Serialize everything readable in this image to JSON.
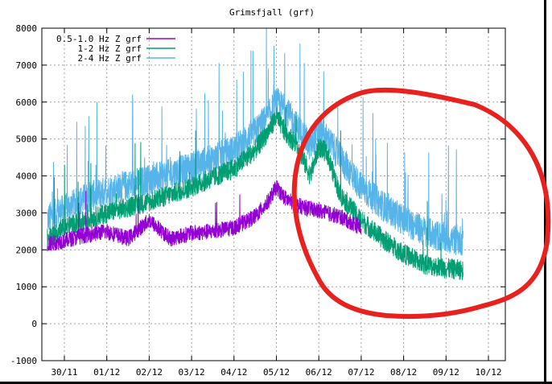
{
  "chart_data": {
    "type": "line",
    "title": "Grimsfjall (grf)",
    "xlabel": "",
    "ylabel": "",
    "ylim": [
      -1000,
      8000
    ],
    "yticks": [
      "-1000",
      "0",
      "1000",
      "2000",
      "3000",
      "4000",
      "5000",
      "6000",
      "7000",
      "8000"
    ],
    "xticks": [
      "30/11",
      "01/12",
      "02/12",
      "03/12",
      "04/12",
      "05/12",
      "06/12",
      "07/12",
      "08/12",
      "09/12",
      "10/12"
    ],
    "xlim": [
      0,
      10.6
    ],
    "grid": true,
    "legend_position": "top-left",
    "series": [
      {
        "name": "0.5-1.0 Hz Z grf",
        "color": "#9400d3",
        "x": [
          -0.4,
          0.0,
          0.5,
          1.0,
          1.5,
          2.0,
          2.5,
          3.0,
          3.5,
          4.0,
          4.5,
          4.8,
          5.0,
          5.2,
          5.5,
          6.0,
          6.5,
          7.0
        ],
        "values": [
          2150,
          2250,
          2400,
          2500,
          2300,
          2800,
          2300,
          2450,
          2500,
          2600,
          2900,
          3300,
          3700,
          3400,
          3200,
          3050,
          2900,
          2600
        ]
      },
      {
        "name": "1-2 Hz Z grf",
        "color": "#009e73",
        "x": [
          -0.4,
          0.0,
          0.5,
          1.0,
          1.5,
          2.0,
          2.5,
          3.0,
          3.5,
          4.0,
          4.5,
          4.8,
          5.0,
          5.2,
          5.5,
          5.8,
          6.0,
          6.2,
          6.5,
          7.0,
          7.5,
          8.0,
          8.5,
          9.0,
          9.4
        ],
        "values": [
          2300,
          2600,
          2800,
          3000,
          3150,
          3300,
          3500,
          3700,
          3950,
          4200,
          4700,
          5200,
          5600,
          5200,
          4800,
          4000,
          4800,
          4600,
          3500,
          2800,
          2300,
          1900,
          1600,
          1500,
          1450
        ]
      },
      {
        "name": "2-4 Hz Z grf",
        "color": "#56b4e9",
        "x": [
          -0.4,
          0.0,
          0.5,
          1.0,
          1.5,
          2.0,
          2.5,
          3.0,
          3.5,
          4.0,
          4.5,
          4.8,
          5.0,
          5.2,
          5.5,
          5.8,
          6.0,
          6.2,
          6.5,
          7.0,
          7.5,
          8.0,
          8.5,
          9.0,
          9.4
        ],
        "values": [
          2850,
          3100,
          3400,
          3600,
          3750,
          3900,
          4050,
          4250,
          4450,
          4700,
          5200,
          5600,
          6000,
          5800,
          5300,
          4800,
          5200,
          5000,
          4500,
          3700,
          3200,
          2800,
          2500,
          2300,
          2250
        ]
      }
    ]
  },
  "annotation": {
    "type": "freehand-circle",
    "color": "#e8211e"
  }
}
